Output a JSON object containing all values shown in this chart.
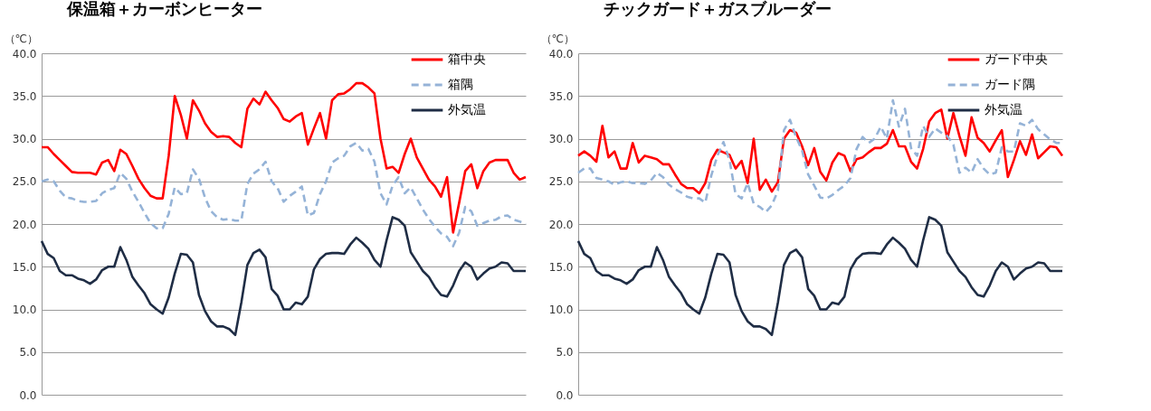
{
  "chart_data": [
    {
      "type": "line",
      "title": "保温箱＋カーボンヒーター",
      "ylabel": "（℃）",
      "categories": [
        null,
        null,
        null,
        null,
        null,
        null,
        null,
        null,
        null,
        null,
        null,
        null,
        null,
        null,
        null,
        null,
        null,
        null,
        null,
        null,
        null,
        null,
        null,
        null,
        null,
        null,
        null,
        null,
        null,
        null,
        null,
        null,
        null,
        null,
        null,
        null,
        null,
        null,
        null,
        null,
        null,
        null,
        null,
        null,
        null,
        null,
        null,
        null,
        null,
        null,
        null,
        null,
        null,
        null,
        null,
        null,
        null,
        null,
        null,
        null,
        null,
        null,
        null,
        null,
        null,
        null,
        null,
        null,
        null,
        null,
        null,
        null,
        null,
        null,
        null,
        null,
        null,
        null,
        null,
        null,
        null
      ],
      "ylim": [
        0,
        40
      ],
      "yticks": [
        {
          "value": 0,
          "label": "0.0"
        },
        {
          "value": 5,
          "label": "5.0"
        },
        {
          "value": 10,
          "label": "10.0"
        },
        {
          "value": 15,
          "label": "15.0"
        },
        {
          "value": 20,
          "label": "20.0"
        },
        {
          "value": 25,
          "label": "25.0"
        },
        {
          "value": 30,
          "label": "30.0"
        },
        {
          "value": 35,
          "label": "35.0"
        },
        {
          "value": 40,
          "label": "40.0"
        }
      ],
      "grid": "y",
      "legend": "top right",
      "tick_labels": "y",
      "series": [
        {
          "name": "箱中央",
          "color": "#ff0000",
          "line_style": "solid",
          "values": [
            29,
            29,
            28.2,
            27.5,
            26.8,
            26.1,
            26,
            26,
            26,
            25.8,
            27.2,
            27.5,
            26.2,
            28.7,
            28.2,
            26.8,
            25.3,
            24.2,
            23.3,
            23,
            23,
            28,
            35,
            32.8,
            30,
            34.5,
            33.3,
            31.8,
            30.8,
            30.2,
            30.3,
            30.2,
            29.5,
            29,
            33.5,
            34.7,
            34,
            35.5,
            34.5,
            33.6,
            32.3,
            32,
            32.6,
            33,
            29.3,
            31.2,
            33,
            30,
            34.5,
            35.2,
            35.3,
            35.8,
            36.5,
            36.5,
            36,
            35.3,
            30,
            26.5,
            26.7,
            26,
            28.2,
            30,
            27.8,
            26.5,
            25.2,
            24.4,
            23.2,
            25.5,
            19,
            22.5,
            26.2,
            27,
            24.2,
            26.2,
            27.2,
            27.5,
            27.5,
            27.5,
            26,
            25.2,
            25.5
          ]
        },
        {
          "name": "箱隅",
          "color": "#95b3d7",
          "line_style": "dashed",
          "values": [
            25,
            25.2,
            25,
            23.9,
            23.1,
            23,
            22.7,
            22.6,
            22.6,
            22.7,
            23.6,
            24,
            24.2,
            26,
            25.3,
            23.8,
            22.6,
            21.3,
            20.1,
            19.5,
            19.5,
            21.2,
            24.3,
            23.5,
            23.6,
            26.4,
            25.3,
            23.1,
            21.5,
            20.8,
            20.5,
            20.6,
            20.4,
            20.4,
            24.7,
            25.9,
            26.4,
            27.3,
            25,
            24.2,
            22.6,
            23.3,
            23.8,
            24.4,
            21,
            21.3,
            23.5,
            25,
            27.2,
            27.7,
            28,
            29.1,
            29.5,
            28.6,
            28.8,
            27.3,
            23.6,
            22.3,
            24.5,
            25.5,
            23.6,
            24.3,
            23,
            21.7,
            20.6,
            19.7,
            18.9,
            18.5,
            17.4,
            19,
            22,
            21.5,
            19.8,
            20.1,
            20.4,
            20.5,
            20.9,
            21,
            20.5,
            20.3,
            20
          ]
        },
        {
          "name": "外気温",
          "color": "#1f2d45",
          "line_style": "solid",
          "values": [
            18,
            16.5,
            16,
            14.5,
            14,
            14,
            13.6,
            13.4,
            13,
            13.5,
            14.6,
            15,
            15,
            17.3,
            15.8,
            13.8,
            12.8,
            11.9,
            10.6,
            10,
            9.5,
            11.4,
            14.2,
            16.5,
            16.4,
            15.5,
            11.7,
            9.8,
            8.6,
            8,
            8,
            7.7,
            7,
            10.8,
            15.2,
            16.6,
            17,
            16.1,
            12.4,
            11.6,
            10,
            10,
            10.8,
            10.6,
            11.5,
            14.7,
            15.9,
            16.5,
            16.6,
            16.6,
            16.5,
            17.6,
            18.4,
            17.8,
            17.1,
            15.8,
            15,
            18.1,
            20.8,
            20.5,
            19.8,
            16.7,
            15.6,
            14.5,
            13.8,
            12.6,
            11.7,
            11.5,
            12.8,
            14.5,
            15.5,
            15,
            13.5,
            14.2,
            14.8,
            15,
            15.5,
            15.4,
            14.5,
            14.5,
            14.5
          ]
        }
      ]
    },
    {
      "type": "line",
      "title": "チックガード＋ガスブルーダー",
      "ylabel": "（℃）",
      "categories": [
        null,
        null,
        null,
        null,
        null,
        null,
        null,
        null,
        null,
        null,
        null,
        null,
        null,
        null,
        null,
        null,
        null,
        null,
        null,
        null,
        null,
        null,
        null,
        null,
        null,
        null,
        null,
        null,
        null,
        null,
        null,
        null,
        null,
        null,
        null,
        null,
        null,
        null,
        null,
        null,
        null,
        null,
        null,
        null,
        null,
        null,
        null,
        null,
        null,
        null,
        null,
        null,
        null,
        null,
        null,
        null,
        null,
        null,
        null,
        null,
        null,
        null,
        null,
        null,
        null,
        null,
        null,
        null,
        null,
        null,
        null,
        null,
        null,
        null,
        null,
        null,
        null,
        null,
        null,
        null,
        null
      ],
      "ylim": [
        0,
        40
      ],
      "yticks": [
        {
          "value": 0,
          "label": "0.0"
        },
        {
          "value": 5,
          "label": "5.0"
        },
        {
          "value": 10,
          "label": "10.0"
        },
        {
          "value": 15,
          "label": "15.0"
        },
        {
          "value": 20,
          "label": "20.0"
        },
        {
          "value": 25,
          "label": "25.0"
        },
        {
          "value": 30,
          "label": "30.0"
        },
        {
          "value": 35,
          "label": "35.0"
        },
        {
          "value": 40,
          "label": "40.0"
        }
      ],
      "grid": "y",
      "legend": "top right",
      "tick_labels": "y",
      "series": [
        {
          "name": "ガード中央",
          "color": "#ff0000",
          "line_style": "solid",
          "values": [
            28,
            28.5,
            28,
            27.3,
            31.5,
            27.8,
            28.5,
            26.5,
            26.5,
            29.5,
            27.2,
            28,
            27.8,
            27.6,
            27,
            27,
            25.8,
            24.7,
            24.2,
            24.2,
            23.6,
            24.8,
            27.5,
            28.7,
            28.4,
            28.1,
            26.5,
            27.4,
            24.8,
            30,
            24,
            25.2,
            23.8,
            24.9,
            30,
            31,
            30.7,
            29.1,
            26.9,
            28.9,
            26.1,
            25.1,
            27.2,
            28.3,
            28,
            26.2,
            27.6,
            27.8,
            28.4,
            28.9,
            28.9,
            29.4,
            31,
            29.1,
            29.1,
            27.3,
            26.5,
            28.8,
            32,
            33,
            33.4,
            30,
            33,
            30.3,
            28,
            32.5,
            30.1,
            29.5,
            28.5,
            29.8,
            31,
            25.5,
            27.5,
            29.7,
            28.1,
            30.5,
            27.7,
            28.4,
            29.1,
            29,
            28
          ]
        },
        {
          "name": "ガード隅",
          "color": "#95b3d7",
          "line_style": "dashed",
          "values": [
            26,
            26.5,
            26.5,
            25.4,
            25.2,
            25,
            24.6,
            24.9,
            25,
            24.8,
            24.8,
            24.7,
            25.1,
            26,
            25.5,
            24.6,
            24.1,
            23.7,
            23.2,
            23,
            23,
            22.5,
            25.7,
            28,
            29.6,
            27.5,
            23.5,
            23,
            24.8,
            22.4,
            22,
            21.4,
            22.2,
            23.9,
            31,
            32.2,
            30.2,
            28.6,
            25.8,
            24.5,
            23.1,
            23,
            23.4,
            24,
            24.5,
            25.4,
            28.8,
            30.2,
            29.5,
            30,
            31.4,
            30,
            34.5,
            31.4,
            33.5,
            28.9,
            28,
            31.5,
            30.2,
            31.2,
            30.7,
            30.3,
            29.3,
            26,
            26.6,
            26,
            27.6,
            26.5,
            25.8,
            26,
            29,
            28.5,
            28.5,
            31.8,
            31.5,
            32.2,
            31.1,
            30.5,
            29.9,
            29.5,
            29.5
          ]
        },
        {
          "name": "外気温",
          "color": "#1f2d45",
          "line_style": "solid",
          "values": [
            18,
            16.5,
            16,
            14.5,
            14,
            14,
            13.6,
            13.4,
            13,
            13.5,
            14.6,
            15,
            15,
            17.3,
            15.8,
            13.8,
            12.8,
            11.9,
            10.6,
            10,
            9.5,
            11.4,
            14.2,
            16.5,
            16.4,
            15.5,
            11.7,
            9.8,
            8.6,
            8,
            8,
            7.7,
            7,
            10.8,
            15.2,
            16.6,
            17,
            16.1,
            12.4,
            11.6,
            10,
            10,
            10.8,
            10.6,
            11.5,
            14.7,
            15.9,
            16.5,
            16.6,
            16.6,
            16.5,
            17.6,
            18.4,
            17.8,
            17.1,
            15.8,
            15,
            18.1,
            20.8,
            20.5,
            19.8,
            16.7,
            15.6,
            14.5,
            13.8,
            12.6,
            11.7,
            11.5,
            12.8,
            14.5,
            15.5,
            15,
            13.5,
            14.2,
            14.8,
            15,
            15.5,
            15.4,
            14.5,
            14.5,
            14.5
          ]
        }
      ]
    }
  ]
}
